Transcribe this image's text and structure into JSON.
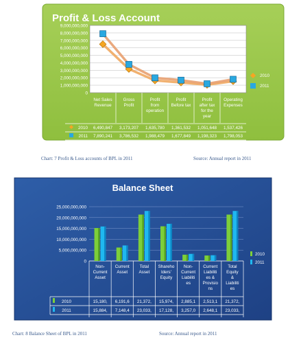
{
  "chart_data": [
    {
      "type": "line",
      "title": "Profit & Loss Account",
      "categories": [
        [
          "Net Sales",
          "Revenue"
        ],
        [
          "Gross",
          "Profit"
        ],
        [
          "Profit",
          "from",
          "operation"
        ],
        [
          "Profit",
          "Before tax"
        ],
        [
          "Profit",
          "after tax",
          "for the",
          "year"
        ],
        [
          "Operating",
          "Expenses"
        ]
      ],
      "y_ticks": [
        "9,000,000,000",
        "8,000,000,000",
        "7,000,000,000",
        "6,000,000,000",
        "5,000,000,000",
        "4,000,000,000",
        "3,000,000,000",
        "2,000,000,000",
        "1,000,000,000",
        "0"
      ],
      "ylim": [
        0,
        9000000000
      ],
      "grid": true,
      "legend": "right",
      "series": [
        {
          "name": "2010",
          "color": "#f5a623",
          "values": [
            6490847000,
            3173207000,
            1635780000,
            1361532000,
            1051648000,
            1537426000
          ],
          "table": [
            "6,490,847",
            "3,173,207",
            "1,635,780",
            "1,361,532",
            "1,051,648",
            "1,537,426"
          ]
        },
        {
          "name": "2011",
          "color": "#2aa8e0",
          "values": [
            7890241000,
            3786532000,
            1988479000,
            1677849000,
            1198323000,
            1798053000
          ],
          "table": [
            "7,890,241",
            "3,786,532",
            "1,988,479",
            "1,677,849",
            "1,198,323",
            "1,798,053"
          ]
        }
      ]
    },
    {
      "type": "bar",
      "title": "Balance Sheet",
      "categories": [
        [
          "Non-",
          "Current",
          "Asset"
        ],
        [
          "Current",
          "Asset"
        ],
        [
          "Total",
          "Asset"
        ],
        [
          "Shareho",
          "lders'",
          "Equity"
        ],
        [
          "Non-",
          "Current",
          "Liabiliti",
          "es"
        ],
        [
          "Current",
          "Liabiliti",
          "es &",
          "Provisio",
          "ns"
        ],
        [
          "Total",
          "Equity",
          "&",
          "Liabiliti",
          "es"
        ]
      ],
      "y_ticks": [
        "25,000,000,000",
        "20,000,000,000",
        "15,000,000,000",
        "10,000,000,000",
        "5,000,000,000",
        "0"
      ],
      "ylim": [
        0,
        25000000000
      ],
      "grid": true,
      "legend": "right",
      "series": [
        {
          "name": "2010",
          "color": "#7dcf3a",
          "values": [
            15180000000,
            6191000000,
            21372000000,
            15974000000,
            2885000000,
            2513000000,
            21372000000
          ],
          "table": [
            "15,180,",
            "6,191,6",
            "21,372,",
            "15,974,",
            "2,885,1",
            "2,513,1",
            "21,372,"
          ]
        },
        {
          "name": "2011",
          "color": "#1fb8f0",
          "values": [
            15884000000,
            7148000000,
            23033000000,
            17128000000,
            3257000000,
            2648000000,
            23033000000
          ],
          "table": [
            "15,884,",
            "7,148,4",
            "23,033,",
            "17,128,",
            "3,257,0",
            "2,648,1",
            "23,033,"
          ]
        }
      ]
    }
  ],
  "captions": {
    "chart1_left": "Chart: 7 Profit & Loss accounts of BPL in 2011",
    "chart1_right": "Source: Annual report in 2011",
    "chart2_left": "Chart: 8 Balance Sheet of BPL in 2011",
    "chart2_right": "Source: Annual report in 2011"
  }
}
